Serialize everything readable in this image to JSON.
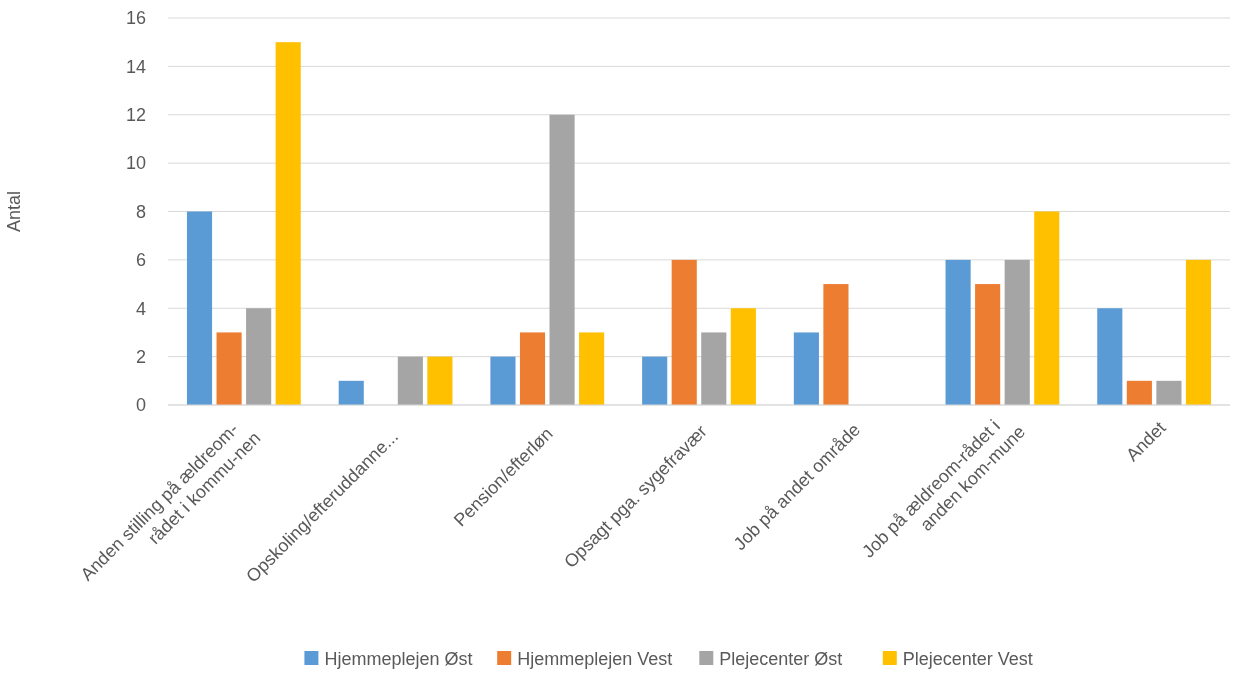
{
  "chart_data": {
    "type": "bar",
    "ylabel": "Antal",
    "categories": [
      "Anden stilling på ældreom-rådet i kommu-nen",
      "Opskoling/efteruddanne...",
      "Pension/efterløn",
      "Opsagt pga. sygefravær",
      "Job på andet område",
      "Job på ældreom-rådet i anden kom-mune",
      "Andet"
    ],
    "series": [
      {
        "name": "Hjemmeplejen Øst",
        "color": "#5b9bd5",
        "values": [
          8,
          1,
          2,
          2,
          3,
          6,
          4
        ]
      },
      {
        "name": "Hjemmeplejen Vest",
        "color": "#ed7d31",
        "values": [
          3,
          0,
          3,
          6,
          5,
          5,
          1
        ]
      },
      {
        "name": "Plejecenter Øst",
        "color": "#a5a5a5",
        "values": [
          4,
          2,
          12,
          3,
          0,
          6,
          1
        ]
      },
      {
        "name": "Plejecenter Vest",
        "color": "#ffc000",
        "values": [
          15,
          2,
          3,
          4,
          0,
          8,
          6
        ]
      }
    ],
    "ylim": [
      0,
      16
    ],
    "yticks": [
      0,
      2,
      4,
      6,
      8,
      10,
      12,
      14,
      16
    ],
    "grid": "y",
    "legend": "bottom"
  }
}
